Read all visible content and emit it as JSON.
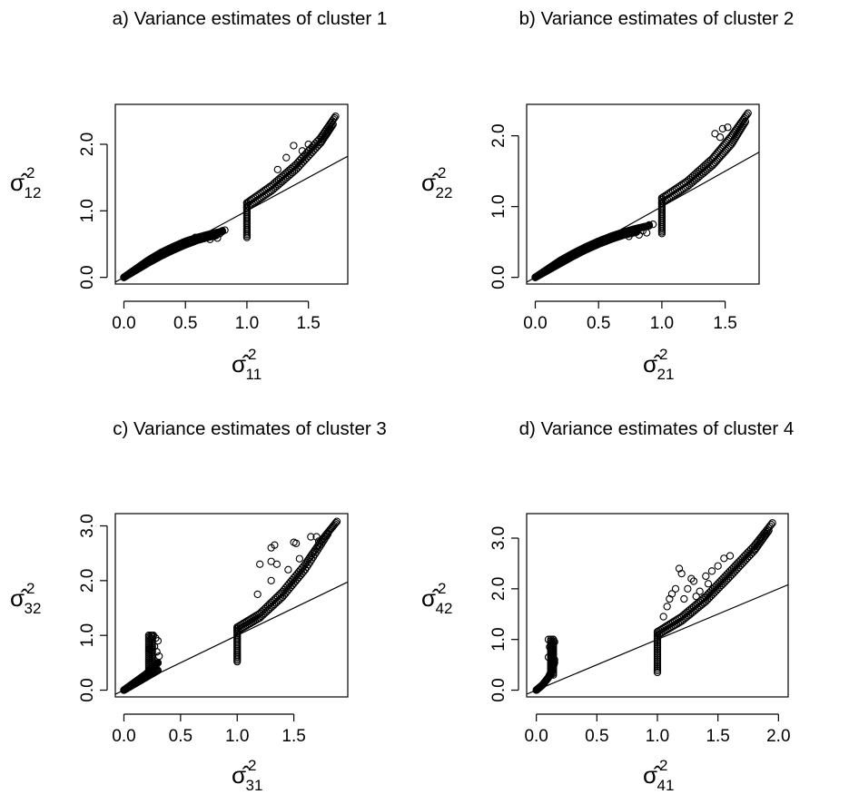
{
  "chart_data": [
    {
      "id": "p1",
      "type": "scatter",
      "title": "a) Variance estimates of cluster 1",
      "xlabel": "σ̂",
      "xlabel_sub": "11",
      "ylabel": "σ̂",
      "ylabel_sub": "12",
      "sup": "2",
      "xlim": [
        0,
        1.75
      ],
      "ylim": [
        0,
        2.5
      ],
      "xticks": [
        "0.0",
        "0.5",
        "1.0",
        "1.5"
      ],
      "yticks": [
        "0.0",
        "1.0",
        "2.0"
      ],
      "reference_line": {
        "slope": 1.0,
        "intercept": 0
      },
      "series": [
        {
          "kind": "curve",
          "points": [
            [
              0,
              0
            ],
            [
              0.1,
              0.13
            ],
            [
              0.2,
              0.26
            ],
            [
              0.3,
              0.37
            ],
            [
              0.4,
              0.46
            ],
            [
              0.5,
              0.54
            ],
            [
              0.6,
              0.6
            ],
            [
              0.7,
              0.65
            ],
            [
              0.8,
              0.69
            ]
          ]
        },
        {
          "kind": "curve",
          "points": [
            [
              0,
              0
            ],
            [
              0.1,
              0.11
            ],
            [
              0.2,
              0.22
            ],
            [
              0.3,
              0.32
            ],
            [
              0.4,
              0.41
            ],
            [
              0.5,
              0.49
            ],
            [
              0.6,
              0.56
            ],
            [
              0.7,
              0.61
            ],
            [
              0.75,
              0.63
            ]
          ]
        },
        {
          "kind": "vertical",
          "x": 1.0,
          "ymin": 0.6,
          "ymax": 1.12
        },
        {
          "kind": "curve",
          "points": [
            [
              1.0,
              1.12
            ],
            [
              1.2,
              1.38
            ],
            [
              1.4,
              1.7
            ],
            [
              1.6,
              2.1
            ],
            [
              1.72,
              2.42
            ]
          ]
        },
        {
          "kind": "curve",
          "points": [
            [
              1.0,
              1.05
            ],
            [
              1.2,
              1.3
            ],
            [
              1.4,
              1.62
            ],
            [
              1.6,
              2.02
            ],
            [
              1.7,
              2.3
            ]
          ]
        },
        {
          "kind": "scatter",
          "points": [
            [
              0.58,
              0.6
            ],
            [
              0.62,
              0.58
            ],
            [
              0.66,
              0.61
            ],
            [
              0.7,
              0.57
            ],
            [
              0.73,
              0.63
            ],
            [
              0.76,
              0.59
            ],
            [
              0.78,
              0.66
            ],
            [
              0.8,
              0.7
            ],
            [
              0.82,
              0.71
            ],
            [
              1.38,
              1.98
            ],
            [
              1.32,
              1.8
            ],
            [
              1.45,
              1.9
            ],
            [
              1.5,
              2.0
            ],
            [
              1.25,
              1.62
            ]
          ]
        }
      ]
    },
    {
      "id": "p2",
      "type": "scatter",
      "title": "b) Variance estimates of cluster 2",
      "xlabel": "σ̂",
      "xlabel_sub": "21",
      "ylabel": "σ̂",
      "ylabel_sub": "22",
      "sup": "2",
      "xlim": [
        0,
        1.7
      ],
      "ylim": [
        0,
        2.35
      ],
      "xticks": [
        "0.0",
        "0.5",
        "1.0",
        "1.5"
      ],
      "yticks": [
        "0.0",
        "1.0",
        "2.0"
      ],
      "reference_line": {
        "slope": 1.0,
        "intercept": 0
      },
      "series": [
        {
          "kind": "curve",
          "points": [
            [
              0,
              0
            ],
            [
              0.1,
              0.12
            ],
            [
              0.2,
              0.24
            ],
            [
              0.3,
              0.34
            ],
            [
              0.4,
              0.43
            ],
            [
              0.5,
              0.51
            ],
            [
              0.6,
              0.58
            ],
            [
              0.7,
              0.64
            ],
            [
              0.8,
              0.69
            ],
            [
              0.9,
              0.73
            ]
          ]
        },
        {
          "kind": "curve",
          "points": [
            [
              0,
              0
            ],
            [
              0.1,
              0.1
            ],
            [
              0.2,
              0.2
            ],
            [
              0.3,
              0.3
            ],
            [
              0.4,
              0.39
            ],
            [
              0.5,
              0.47
            ],
            [
              0.6,
              0.54
            ],
            [
              0.7,
              0.6
            ],
            [
              0.8,
              0.64
            ]
          ]
        },
        {
          "kind": "vertical",
          "x": 1.0,
          "ymin": 0.62,
          "ymax": 1.12
        },
        {
          "kind": "curve",
          "points": [
            [
              1.0,
              1.12
            ],
            [
              1.2,
              1.36
            ],
            [
              1.4,
              1.68
            ],
            [
              1.55,
              2.0
            ],
            [
              1.68,
              2.32
            ]
          ]
        },
        {
          "kind": "curve",
          "points": [
            [
              1.0,
              1.05
            ],
            [
              1.2,
              1.28
            ],
            [
              1.4,
              1.58
            ],
            [
              1.55,
              1.88
            ],
            [
              1.66,
              2.2
            ]
          ]
        },
        {
          "kind": "scatter",
          "points": [
            [
              0.65,
              0.6
            ],
            [
              0.7,
              0.62
            ],
            [
              0.74,
              0.58
            ],
            [
              0.78,
              0.64
            ],
            [
              0.82,
              0.6
            ],
            [
              0.85,
              0.66
            ],
            [
              0.88,
              0.63
            ],
            [
              0.9,
              0.74
            ],
            [
              0.93,
              0.75
            ],
            [
              1.42,
              2.03
            ],
            [
              1.48,
              2.1
            ],
            [
              1.52,
              2.12
            ],
            [
              1.46,
              1.98
            ]
          ]
        }
      ]
    },
    {
      "id": "p3",
      "type": "scatter",
      "title": "c) Variance estimates of cluster 3",
      "xlabel": "σ̂",
      "xlabel_sub": "31",
      "ylabel": "σ̂",
      "ylabel_sub": "32",
      "sup": "2",
      "xlim": [
        0,
        1.9
      ],
      "ylim": [
        0,
        3.1
      ],
      "xticks": [
        "0.0",
        "0.5",
        "1.0",
        "1.5"
      ],
      "yticks": [
        "0.0",
        "1.0",
        "2.0",
        "3.0"
      ],
      "reference_line": {
        "slope": 1.0,
        "intercept": 0
      },
      "series": [
        {
          "kind": "curve",
          "points": [
            [
              0,
              0
            ],
            [
              0.1,
              0.15
            ],
            [
              0.2,
              0.3
            ],
            [
              0.26,
              0.42
            ],
            [
              0.3,
              0.5
            ]
          ]
        },
        {
          "kind": "curve",
          "points": [
            [
              0,
              0
            ],
            [
              0.1,
              0.12
            ],
            [
              0.2,
              0.24
            ],
            [
              0.3,
              0.36
            ]
          ]
        },
        {
          "kind": "vertical",
          "x": 0.22,
          "ymin": 0.3,
          "ymax": 1.0
        },
        {
          "kind": "vertical",
          "x": 0.25,
          "ymin": 0.3,
          "ymax": 1.0
        },
        {
          "kind": "vertical",
          "x": 1.0,
          "ymin": 0.52,
          "ymax": 1.15
        },
        {
          "kind": "curve",
          "points": [
            [
              1.0,
              1.15
            ],
            [
              1.2,
              1.4
            ],
            [
              1.4,
              1.8
            ],
            [
              1.6,
              2.3
            ],
            [
              1.75,
              2.75
            ],
            [
              1.88,
              3.08
            ]
          ]
        },
        {
          "kind": "curve",
          "points": [
            [
              1.0,
              1.08
            ],
            [
              1.2,
              1.32
            ],
            [
              1.4,
              1.7
            ],
            [
              1.6,
              2.2
            ],
            [
              1.8,
              2.85
            ]
          ]
        },
        {
          "kind": "scatter",
          "points": [
            [
              0.22,
              1.0
            ],
            [
              0.24,
              1.0
            ],
            [
              0.26,
              1.0
            ],
            [
              0.28,
              0.95
            ],
            [
              0.3,
              0.9
            ],
            [
              0.27,
              0.8
            ],
            [
              0.29,
              0.7
            ],
            [
              0.31,
              0.62
            ],
            [
              0.23,
              0.75
            ],
            [
              0.3,
              0.5
            ],
            [
              1.2,
              2.3
            ],
            [
              1.3,
              2.6
            ],
            [
              1.33,
              2.65
            ],
            [
              1.3,
              2.35
            ],
            [
              1.35,
              2.3
            ],
            [
              1.5,
              2.7
            ],
            [
              1.52,
              2.68
            ],
            [
              1.3,
              2.0
            ],
            [
              1.18,
              1.75
            ],
            [
              1.65,
              2.8
            ],
            [
              1.72,
              2.72
            ],
            [
              1.45,
              2.2
            ],
            [
              1.55,
              2.4
            ],
            [
              1.7,
              2.8
            ]
          ]
        }
      ]
    },
    {
      "id": "p4",
      "type": "scatter",
      "title": "d) Variance estimates of cluster 4",
      "xlabel": "σ̂",
      "xlabel_sub": "41",
      "ylabel": "σ̂",
      "ylabel_sub": "42",
      "sup": "2",
      "xlim": [
        0,
        2.0
      ],
      "ylim": [
        0,
        3.35
      ],
      "xticks": [
        "0.0",
        "0.5",
        "1.0",
        "1.5",
        "2.0"
      ],
      "yticks": [
        "0.0",
        "1.0",
        "2.0",
        "3.0"
      ],
      "reference_line": {
        "slope": 1.0,
        "intercept": 0
      },
      "series": [
        {
          "kind": "curve",
          "points": [
            [
              0,
              0
            ],
            [
              0.05,
              0.1
            ],
            [
              0.1,
              0.25
            ],
            [
              0.13,
              0.4
            ],
            [
              0.15,
              0.55
            ]
          ]
        },
        {
          "kind": "vertical",
          "x": 0.12,
          "ymin": 0.3,
          "ymax": 1.0
        },
        {
          "kind": "vertical",
          "x": 0.14,
          "ymin": 0.3,
          "ymax": 1.0
        },
        {
          "kind": "vertical",
          "x": 1.0,
          "ymin": 0.35,
          "ymax": 1.15
        },
        {
          "kind": "curve",
          "points": [
            [
              1.0,
              1.15
            ],
            [
              1.2,
              1.45
            ],
            [
              1.4,
              1.85
            ],
            [
              1.6,
              2.35
            ],
            [
              1.8,
              2.85
            ],
            [
              1.95,
              3.3
            ]
          ]
        },
        {
          "kind": "curve",
          "points": [
            [
              1.0,
              1.08
            ],
            [
              1.2,
              1.36
            ],
            [
              1.4,
              1.75
            ],
            [
              1.6,
              2.24
            ],
            [
              1.8,
              2.75
            ],
            [
              1.92,
              3.15
            ]
          ]
        },
        {
          "kind": "scatter",
          "points": [
            [
              0.1,
              1.0
            ],
            [
              0.12,
              1.0
            ],
            [
              0.14,
              1.0
            ],
            [
              0.15,
              0.95
            ],
            [
              0.11,
              0.85
            ],
            [
              0.13,
              0.75
            ],
            [
              0.15,
              0.6
            ],
            [
              0.1,
              0.65
            ],
            [
              1.05,
              1.45
            ],
            [
              1.08,
              1.65
            ],
            [
              1.1,
              1.8
            ],
            [
              1.12,
              1.9
            ],
            [
              1.15,
              2.0
            ],
            [
              1.18,
              2.4
            ],
            [
              1.2,
              2.3
            ],
            [
              1.25,
              2.0
            ],
            [
              1.28,
              2.2
            ],
            [
              1.3,
              2.15
            ],
            [
              1.35,
              1.95
            ],
            [
              1.4,
              2.25
            ],
            [
              1.45,
              2.35
            ],
            [
              1.5,
              2.45
            ],
            [
              1.55,
              2.6
            ],
            [
              1.6,
              2.65
            ],
            [
              1.22,
              1.8
            ],
            [
              1.32,
              1.85
            ],
            [
              1.42,
              2.1
            ]
          ]
        }
      ]
    }
  ]
}
